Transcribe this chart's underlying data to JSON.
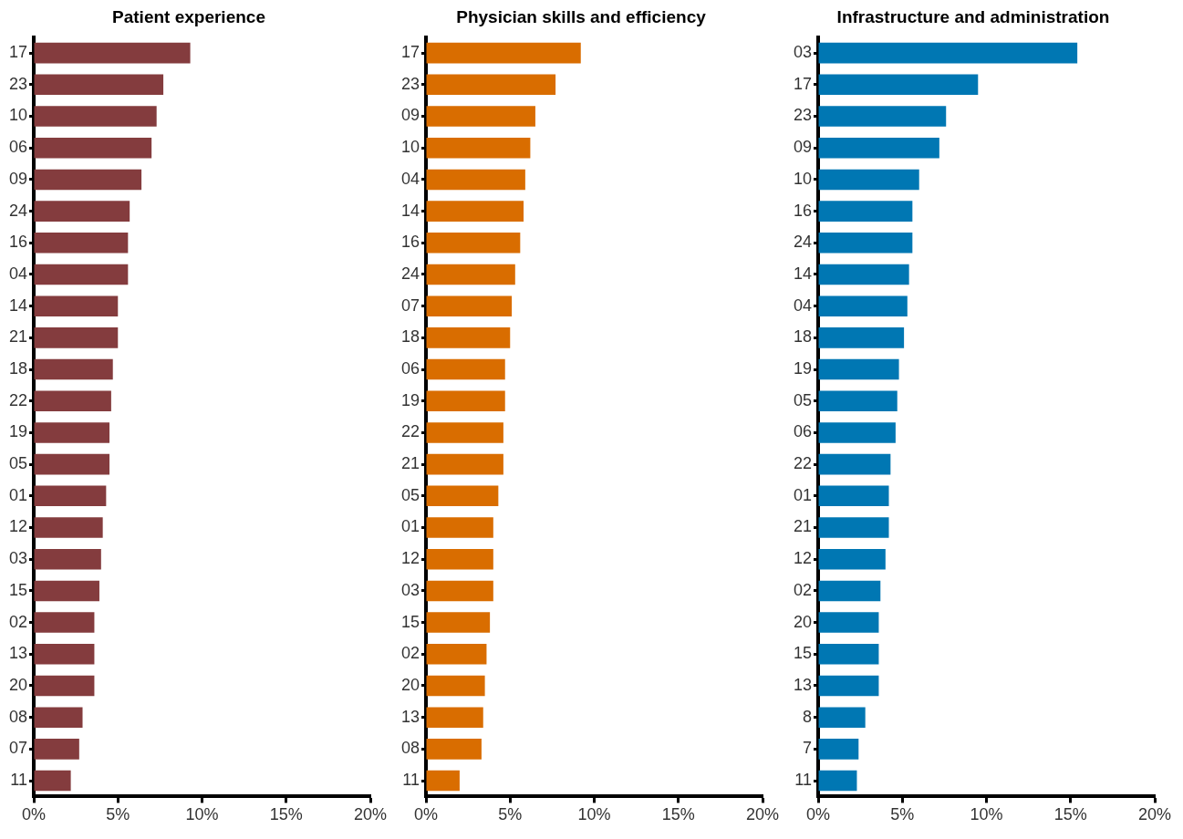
{
  "chart_data": [
    {
      "type": "bar",
      "orientation": "horizontal",
      "title": "Patient experience",
      "categories": [
        "17",
        "23",
        "10",
        "06",
        "09",
        "24",
        "16",
        "04",
        "14",
        "21",
        "18",
        "22",
        "19",
        "05",
        "01",
        "12",
        "03",
        "15",
        "02",
        "13",
        "20",
        "08",
        "07",
        "11"
      ],
      "values": [
        9.3,
        7.7,
        7.3,
        7.0,
        6.4,
        5.7,
        5.6,
        5.6,
        5.0,
        5.0,
        4.7,
        4.6,
        4.5,
        4.5,
        4.3,
        4.1,
        4.0,
        3.9,
        3.6,
        3.6,
        3.6,
        2.9,
        2.7,
        2.2
      ],
      "color": "#843c3e",
      "xlim": [
        0,
        20
      ],
      "xticks": [
        {
          "value": 0,
          "label": "0%"
        },
        {
          "value": 5,
          "label": "5%"
        },
        {
          "value": 10,
          "label": "10%"
        },
        {
          "value": 15,
          "label": "15%"
        },
        {
          "value": 20,
          "label": "20%"
        }
      ]
    },
    {
      "type": "bar",
      "orientation": "horizontal",
      "title": "Physician skills and efficiency",
      "categories": [
        "17",
        "23",
        "09",
        "10",
        "04",
        "14",
        "16",
        "24",
        "07",
        "18",
        "06",
        "19",
        "22",
        "21",
        "05",
        "01",
        "12",
        "03",
        "15",
        "02",
        "20",
        "13",
        "08",
        "11"
      ],
      "values": [
        9.2,
        7.7,
        6.5,
        6.2,
        5.9,
        5.8,
        5.6,
        5.3,
        5.1,
        5.0,
        4.7,
        4.7,
        4.6,
        4.6,
        4.3,
        4.0,
        4.0,
        4.0,
        3.8,
        3.6,
        3.5,
        3.4,
        3.3,
        2.0
      ],
      "color": "#d96d00",
      "xlim": [
        0,
        20
      ],
      "xticks": [
        {
          "value": 0,
          "label": "0%"
        },
        {
          "value": 5,
          "label": "5%"
        },
        {
          "value": 10,
          "label": "10%"
        },
        {
          "value": 15,
          "label": "15%"
        },
        {
          "value": 20,
          "label": "20%"
        }
      ]
    },
    {
      "type": "bar",
      "orientation": "horizontal",
      "title": "Infrastructure and administration",
      "categories": [
        "03",
        "17",
        "23",
        "09",
        "10",
        "16",
        "24",
        "14",
        "04",
        "18",
        "19",
        "05",
        "06",
        "22",
        "01",
        "21",
        "12",
        "02",
        "20",
        "15",
        "13",
        "8",
        "7",
        "11"
      ],
      "values": [
        15.4,
        9.5,
        7.6,
        7.2,
        6.0,
        5.6,
        5.6,
        5.4,
        5.3,
        5.1,
        4.8,
        4.7,
        4.6,
        4.3,
        4.2,
        4.2,
        4.0,
        3.7,
        3.6,
        3.6,
        3.6,
        2.8,
        2.4,
        2.3
      ],
      "color": "#0077b3",
      "xlim": [
        0,
        20
      ],
      "xticks": [
        {
          "value": 0,
          "label": "0%"
        },
        {
          "value": 5,
          "label": "5%"
        },
        {
          "value": 10,
          "label": "10%"
        },
        {
          "value": 15,
          "label": "15%"
        },
        {
          "value": 20,
          "label": "20%"
        }
      ]
    }
  ]
}
